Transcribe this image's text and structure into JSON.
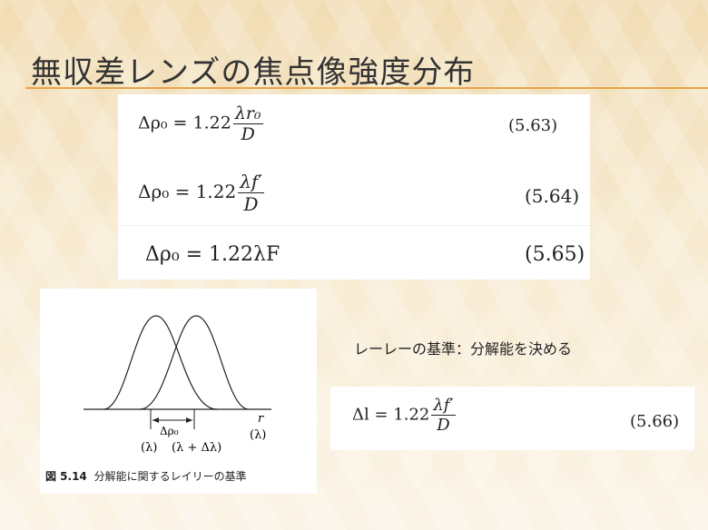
{
  "slide": {
    "title": "無収差レンズの焦点像強度分布"
  },
  "equations": [
    {
      "lhs": "Δρ₀ = 1.22",
      "frac_num": "λr₀",
      "frac_den": "D",
      "number": "(5.63)"
    },
    {
      "lhs": "Δρ₀ = 1.22",
      "frac_num": "λf′",
      "frac_den": "D",
      "number": "(5.64)"
    },
    {
      "lhs": "Δρ₀ = 1.22λF",
      "number": "(5.65)"
    }
  ],
  "figure": {
    "axis_r": "r",
    "delta_label": "Δρ₀",
    "label_lambda": "(λ)",
    "label_lambda_plus": "(λ + Δλ)",
    "label_lambda_right": "(λ)",
    "caption_num": "図 5.14",
    "caption_text": "分解能に関するレイリーの基準"
  },
  "side_text": "レーレーの基準：分解能を決める",
  "equation2": {
    "lhs": "Δl = 1.22",
    "frac_num": "λf′",
    "frac_den": "D",
    "number": "(5.66)"
  }
}
